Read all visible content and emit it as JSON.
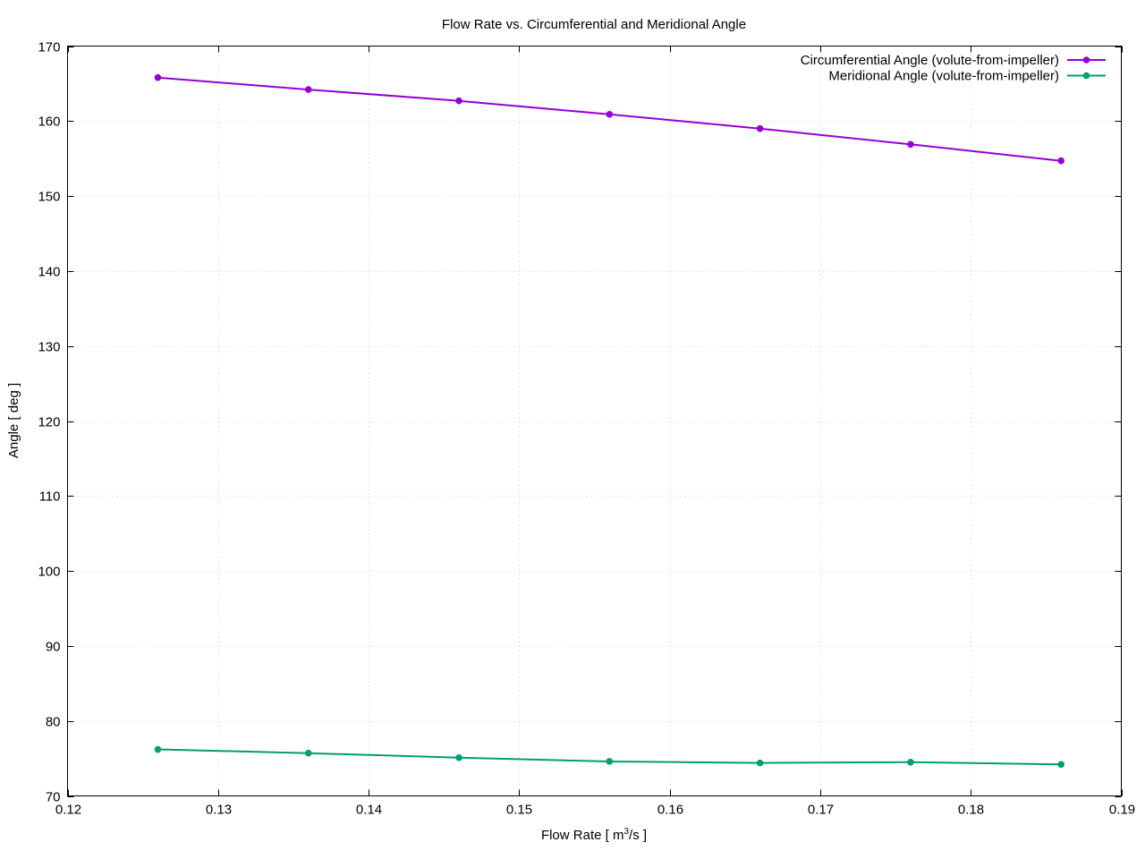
{
  "chart_data": {
    "type": "line",
    "title": "Flow Rate vs. Circumferential and Meridional Angle",
    "xlabel_prefix": "Flow Rate [ m",
    "xlabel_sup": "3",
    "xlabel_suffix": "/s ]",
    "ylabel": "Angle [ deg ]",
    "xlim": [
      0.12,
      0.19
    ],
    "ylim": [
      70,
      170
    ],
    "xticks": [
      0.12,
      0.13,
      0.14,
      0.15,
      0.16,
      0.17,
      0.18,
      0.19
    ],
    "yticks": [
      70,
      80,
      90,
      100,
      110,
      120,
      130,
      140,
      150,
      160,
      170
    ],
    "xtick_labels": [
      "0.12",
      "0.13",
      "0.14",
      "0.15",
      "0.16",
      "0.17",
      "0.18",
      "0.19"
    ],
    "ytick_labels": [
      "70",
      "80",
      "90",
      "100",
      "110",
      "120",
      "130",
      "140",
      "150",
      "160",
      "170"
    ],
    "grid": true,
    "legend_position": "top-right",
    "x": [
      0.126,
      0.136,
      0.146,
      0.156,
      0.166,
      0.176,
      0.186
    ],
    "series": [
      {
        "name": "Circumferential Angle (volute-from-impeller)",
        "color": "#9400d3",
        "values": [
          165.8,
          164.2,
          162.7,
          160.9,
          159.0,
          156.9,
          154.7
        ]
      },
      {
        "name": "Meridional Angle (volute-from-impeller)",
        "color": "#009e73",
        "values": [
          76.2,
          75.7,
          75.1,
          74.6,
          74.4,
          74.5,
          74.2
        ]
      }
    ]
  }
}
